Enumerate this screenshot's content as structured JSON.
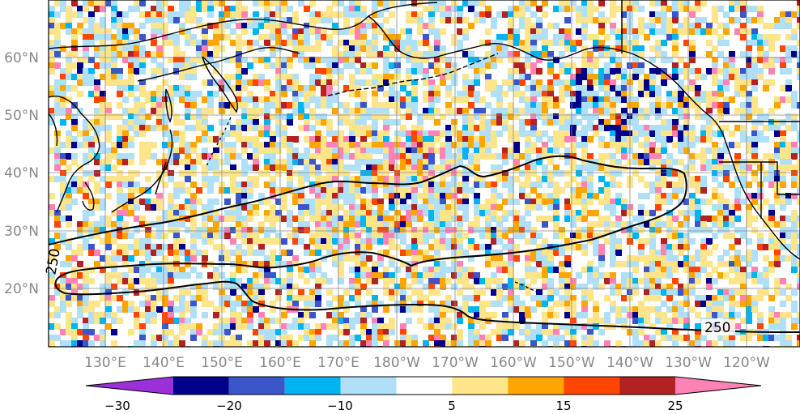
{
  "map": {
    "lat_labels": [
      "60°N",
      "50°N",
      "40°N",
      "30°N",
      "20°N"
    ],
    "lon_labels": [
      "130°E",
      "140°E",
      "150°E",
      "160°E",
      "170°E",
      "180°W",
      "170°W",
      "160°W",
      "150°W",
      "140°W",
      "130°W",
      "120°W"
    ],
    "contour_labels": [
      "250",
      "250"
    ],
    "colors": {
      "coast": "#000000",
      "grid": "#888888",
      "contour": "#000000"
    }
  },
  "colorbar": {
    "tick_labels": [
      "−30",
      "−20",
      "−10",
      "5",
      "15",
      "25"
    ],
    "segments": [
      {
        "from": -30,
        "to": -25,
        "color": "#9b30d9"
      },
      {
        "from": -25,
        "to": -20,
        "color": "#00008b"
      },
      {
        "from": -20,
        "to": -15,
        "color": "#3a56c8"
      },
      {
        "from": -15,
        "to": -10,
        "color": "#00b4f0"
      },
      {
        "from": -10,
        "to": -5,
        "color": "#b0e0f8"
      },
      {
        "from": -5,
        "to": 5,
        "color": "#ffffff"
      },
      {
        "from": 5,
        "to": 10,
        "color": "#ffe58a"
      },
      {
        "from": 10,
        "to": 15,
        "color": "#ffa500"
      },
      {
        "from": 15,
        "to": 20,
        "color": "#ff4500"
      },
      {
        "from": 20,
        "to": 25,
        "color": "#b22222"
      },
      {
        "from": 25,
        "to": 30,
        "color": "#ff82b4"
      }
    ],
    "extend": "both"
  }
}
